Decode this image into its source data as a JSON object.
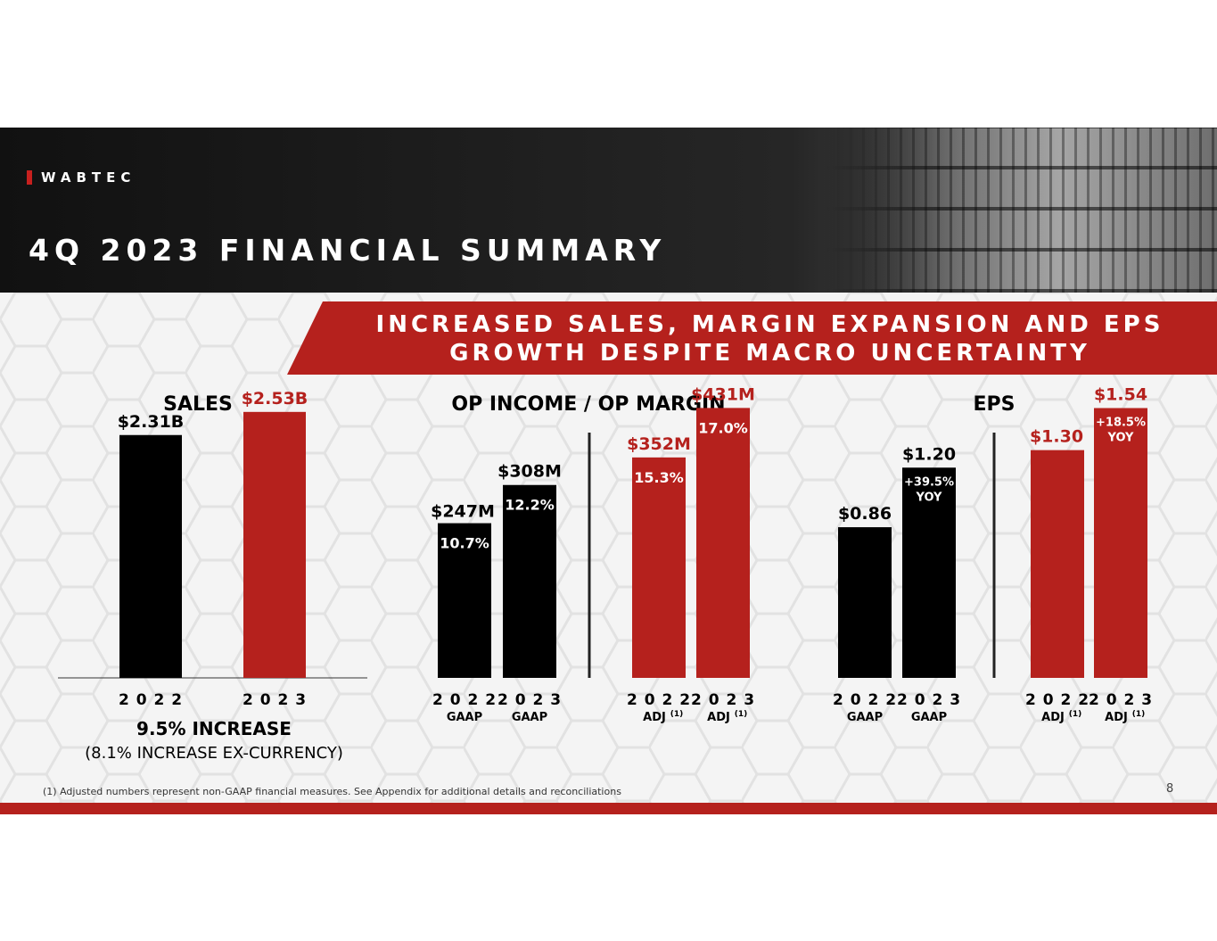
{
  "header": {
    "brand": "WABTEC",
    "title": "4Q 2023 FINANCIAL SUMMARY",
    "banner_line1": "INCREASED SALES, MARGIN EXPANSION AND EPS",
    "banner_line2": "GROWTH DESPITE MACRO UNCERTAINTY"
  },
  "footer": {
    "footnote": "(1)  Adjusted numbers represent non-GAAP financial measures.  See Appendix for additional details and reconciliations",
    "page": "8"
  },
  "colors": {
    "black": "#000000",
    "red": "#b5211d"
  },
  "chart_data": [
    {
      "type": "bar",
      "title": "SALES",
      "unit": "billions",
      "ylim": [
        0,
        2.8
      ],
      "bars": [
        {
          "category": "2022",
          "sublabel": "",
          "value": 2.31,
          "label": "$2.31B",
          "color": "black"
        },
        {
          "category": "2023",
          "sublabel": "",
          "value": 2.53,
          "label": "$2.53B",
          "color": "red"
        }
      ],
      "note": "9.5% INCREASE",
      "note2": "(8.1% INCREASE EX-CURRENCY)"
    },
    {
      "type": "bar",
      "title": "OP INCOME / OP MARGIN",
      "unit": "millions",
      "ylim": [
        0,
        470
      ],
      "bars": [
        {
          "category": "2022",
          "sublabel": "GAAP",
          "value": 247,
          "label": "$247M",
          "margin": "10.7%",
          "color": "black"
        },
        {
          "category": "2023",
          "sublabel": "GAAP",
          "value": 308,
          "label": "$308M",
          "margin": "12.2%",
          "color": "black"
        },
        {
          "category": "2022",
          "sublabel": "ADJ",
          "sup": "(1)",
          "value": 352,
          "label": "$352M",
          "margin": "15.3%",
          "color": "red"
        },
        {
          "category": "2023",
          "sublabel": "ADJ",
          "sup": "(1)",
          "value": 431,
          "label": "$431M",
          "margin": "17.0%",
          "color": "red"
        }
      ]
    },
    {
      "type": "bar",
      "title": "EPS",
      "unit": "dollars",
      "ylim": [
        0,
        1.68
      ],
      "bars": [
        {
          "category": "2022",
          "sublabel": "GAAP",
          "value": 0.86,
          "label": "$0.86",
          "color": "black"
        },
        {
          "category": "2023",
          "sublabel": "GAAP",
          "value": 1.2,
          "label": "$1.20",
          "growth1": "+39.5%",
          "growth2": "YOY",
          "color": "black"
        },
        {
          "category": "2022",
          "sublabel": "ADJ",
          "sup": "(1)",
          "value": 1.3,
          "label": "$1.30",
          "color": "red"
        },
        {
          "category": "2023",
          "sublabel": "ADJ",
          "sup": "(1)",
          "value": 1.54,
          "label": "$1.54",
          "growth1": "+18.5%",
          "growth2": "YOY",
          "color": "red"
        }
      ]
    }
  ]
}
